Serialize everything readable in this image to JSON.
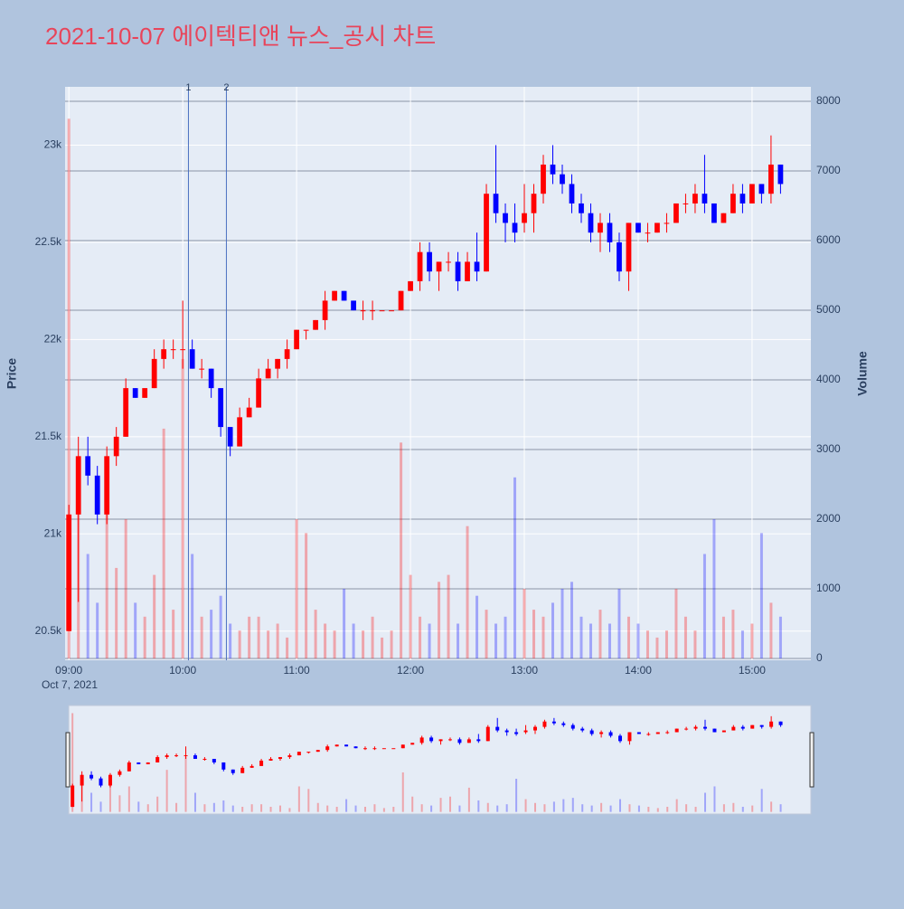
{
  "chart_data": {
    "type": "candlestick",
    "title": "2021-10-07 에이텍티앤 뉴스_공시 차트",
    "yaxis_title": "Price",
    "y2axis_title": "Volume",
    "date_label": "Oct 7, 2021",
    "increasing_color": "#ff0000",
    "decreasing_color": "#0000ff",
    "x": [
      "09:00",
      "09:05",
      "09:10",
      "09:15",
      "09:20",
      "09:25",
      "09:30",
      "09:35",
      "09:40",
      "09:45",
      "09:50",
      "09:55",
      "10:00",
      "10:05",
      "10:10",
      "10:15",
      "10:20",
      "10:25",
      "10:30",
      "10:35",
      "10:40",
      "10:45",
      "10:50",
      "10:55",
      "11:00",
      "11:05",
      "11:10",
      "11:15",
      "11:20",
      "11:25",
      "11:30",
      "11:35",
      "11:40",
      "11:45",
      "11:50",
      "11:55",
      "12:00",
      "12:05",
      "12:10",
      "12:15",
      "12:20",
      "12:25",
      "12:30",
      "12:35",
      "12:40",
      "12:45",
      "12:50",
      "12:55",
      "13:00",
      "13:05",
      "13:10",
      "13:15",
      "13:20",
      "13:25",
      "13:30",
      "13:35",
      "13:40",
      "13:45",
      "13:50",
      "13:55",
      "14:00",
      "14:05",
      "14:10",
      "14:15",
      "14:20",
      "14:25",
      "14:30",
      "14:35",
      "14:40",
      "14:45",
      "14:50",
      "14:55",
      "15:00",
      "15:05",
      "15:10",
      "15:15"
    ],
    "open": [
      20500,
      21100,
      21400,
      21300,
      21100,
      21400,
      21500,
      21750,
      21700,
      21750,
      21900,
      21950,
      21950,
      21950,
      21850,
      21850,
      21750,
      21550,
      21450,
      21600,
      21650,
      21800,
      21850,
      21900,
      21950,
      22050,
      22050,
      22100,
      22200,
      22250,
      22200,
      22150,
      22150,
      22150,
      22150,
      22150,
      22250,
      22300,
      22450,
      22350,
      22400,
      22400,
      22300,
      22400,
      22350,
      22750,
      22650,
      22600,
      22600,
      22650,
      22750,
      22900,
      22850,
      22800,
      22700,
      22650,
      22550,
      22600,
      22500,
      22350,
      22600,
      22550,
      22550,
      22600,
      22600,
      22700,
      22700,
      22750,
      22700,
      22600,
      22650,
      22750,
      22700,
      22800,
      22750,
      22900
    ],
    "high": [
      21150,
      21500,
      21500,
      21350,
      21450,
      21550,
      21800,
      21750,
      21750,
      21950,
      22000,
      22000,
      22200,
      22000,
      21900,
      21850,
      21750,
      21550,
      21650,
      21700,
      21850,
      21900,
      21900,
      22000,
      22050,
      22050,
      22100,
      22250,
      22250,
      22250,
      22200,
      22200,
      22200,
      22150,
      22150,
      22250,
      22300,
      22500,
      22500,
      22400,
      22450,
      22450,
      22450,
      22550,
      22800,
      23000,
      22700,
      22700,
      22800,
      22800,
      22950,
      23000,
      22900,
      22850,
      22750,
      22700,
      22650,
      22650,
      22550,
      22600,
      22600,
      22600,
      22600,
      22650,
      22700,
      22750,
      22800,
      22950,
      22700,
      22650,
      22800,
      22800,
      22800,
      22800,
      23050,
      22900
    ],
    "low": [
      20500,
      20650,
      21250,
      21050,
      21050,
      21350,
      21500,
      21700,
      21700,
      21750,
      21850,
      21900,
      21850,
      21850,
      21800,
      21700,
      21500,
      21400,
      21450,
      21600,
      21650,
      21800,
      21800,
      21850,
      21950,
      22000,
      22050,
      22050,
      22200,
      22200,
      22150,
      22100,
      22100,
      22150,
      22150,
      22150,
      22250,
      22250,
      22300,
      22250,
      22350,
      22250,
      22300,
      22300,
      22350,
      22600,
      22500,
      22500,
      22550,
      22550,
      22700,
      22800,
      22750,
      22650,
      22600,
      22500,
      22450,
      22450,
      22300,
      22250,
      22550,
      22500,
      22550,
      22550,
      22600,
      22650,
      22650,
      22650,
      22600,
      22600,
      22650,
      22650,
      22700,
      22700,
      22700,
      22750
    ],
    "close": [
      21100,
      21400,
      21300,
      21100,
      21400,
      21500,
      21750,
      21700,
      21750,
      21900,
      21950,
      21950,
      21950,
      21850,
      21850,
      21750,
      21550,
      21450,
      21600,
      21650,
      21800,
      21850,
      21900,
      21950,
      22050,
      22050,
      22100,
      22200,
      22250,
      22200,
      22150,
      22150,
      22150,
      22150,
      22150,
      22250,
      22300,
      22450,
      22350,
      22400,
      22400,
      22300,
      22400,
      22350,
      22750,
      22650,
      22600,
      22550,
      22650,
      22750,
      22900,
      22850,
      22800,
      22700,
      22650,
      22550,
      22600,
      22500,
      22350,
      22600,
      22550,
      22550,
      22600,
      22600,
      22700,
      22700,
      22750,
      22700,
      22600,
      22650,
      22750,
      22700,
      22800,
      22750,
      22900,
      22800
    ],
    "volume": [
      7750,
      2700,
      1500,
      800,
      2200,
      1300,
      2000,
      800,
      600,
      1200,
      3300,
      700,
      4300,
      1500,
      600,
      700,
      900,
      500,
      400,
      600,
      600,
      400,
      500,
      300,
      2000,
      1800,
      700,
      500,
      400,
      1000,
      500,
      400,
      600,
      300,
      400,
      3100,
      1200,
      600,
      500,
      1100,
      1200,
      500,
      1900,
      900,
      700,
      500,
      600,
      2600,
      1000,
      700,
      600,
      800,
      1000,
      1100,
      600,
      500,
      700,
      500,
      1000,
      600,
      500,
      400,
      300,
      400,
      1000,
      600,
      400,
      1500,
      2000,
      600,
      700,
      400,
      500,
      1800,
      800,
      600
    ],
    "xlim": [
      "08:58",
      "15:31"
    ],
    "xticks": [
      "09:00",
      "10:00",
      "11:00",
      "12:00",
      "13:00",
      "14:00",
      "15:00"
    ],
    "ylim": [
      20350,
      23300
    ],
    "yticks": [
      {
        "value": 20500,
        "label": "20.5k"
      },
      {
        "value": 21000,
        "label": "21k"
      },
      {
        "value": 21500,
        "label": "21.5k"
      },
      {
        "value": 22000,
        "label": "22k"
      },
      {
        "value": 22500,
        "label": "22.5k"
      },
      {
        "value": 23000,
        "label": "23k"
      }
    ],
    "y2lim": [
      -26,
      8208
    ],
    "y2ticks": [
      0,
      1000,
      2000,
      3000,
      4000,
      5000,
      6000,
      7000,
      8000
    ],
    "annotations": [
      {
        "text": "1",
        "x": "10:03"
      },
      {
        "text": "2",
        "x": "10:23"
      }
    ],
    "grid": true,
    "rangeslider": true
  }
}
